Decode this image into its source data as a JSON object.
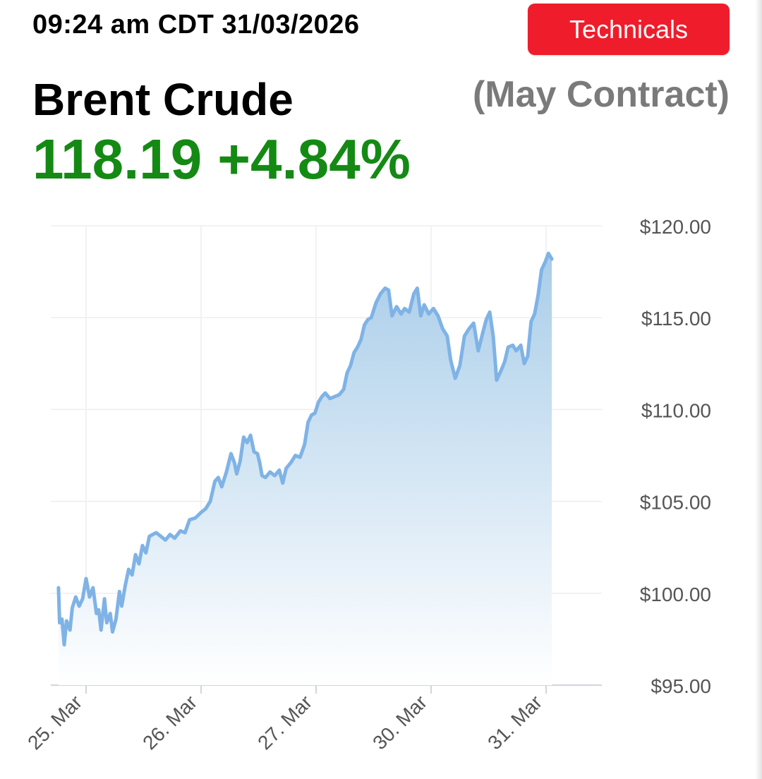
{
  "header": {
    "timestamp": "09:24 am CDT 31/03/2026",
    "technicals_label": "Technicals",
    "instrument_name": "Brent Crude",
    "contract_label": "(May Contract)",
    "price": "118.19",
    "change_pct": "+4.84%"
  },
  "colors": {
    "button": "#ef1d2b",
    "price_up": "#148a14",
    "contract_text": "#7a7a7a",
    "line": "#7fb3e6",
    "area_top": "#a9cde9",
    "area_bottom": "#ffffff",
    "grid": "#eeeeee",
    "axis_text": "#555555"
  },
  "chart_data": {
    "type": "area",
    "xlabel": "",
    "ylabel": "",
    "ylim": [
      95,
      120
    ],
    "y_ticks": [
      {
        "value": 120,
        "label": "$120.00"
      },
      {
        "value": 115,
        "label": "$115.00"
      },
      {
        "value": 110,
        "label": "$110.00"
      },
      {
        "value": 105,
        "label": "$105.00"
      },
      {
        "value": 100,
        "label": "$100.00"
      },
      {
        "value": 95,
        "label": "$95.00"
      }
    ],
    "x_range": [
      -0.2,
      4.35
    ],
    "x_ticks": [
      {
        "value": 0,
        "label": "25. Mar"
      },
      {
        "value": 1,
        "label": "26. Mar"
      },
      {
        "value": 2,
        "label": "27. Mar"
      },
      {
        "value": 3,
        "label": "30. Mar"
      },
      {
        "value": 4,
        "label": "31. Mar"
      }
    ],
    "grid": true,
    "legend": "none",
    "series": [
      {
        "values": [
          [
            -0.24,
            100.3
          ],
          [
            -0.23,
            98.4
          ],
          [
            -0.21,
            98.6
          ],
          [
            -0.19,
            97.2
          ],
          [
            -0.17,
            98.5
          ],
          [
            -0.14,
            98.0
          ],
          [
            -0.12,
            99.2
          ],
          [
            -0.09,
            99.8
          ],
          [
            -0.06,
            99.3
          ],
          [
            -0.03,
            99.7
          ],
          [
            0.0,
            100.8
          ],
          [
            0.03,
            99.8
          ],
          [
            0.06,
            100.3
          ],
          [
            0.09,
            98.9
          ],
          [
            0.11,
            99.1
          ],
          [
            0.13,
            98.0
          ],
          [
            0.16,
            99.7
          ],
          [
            0.18,
            98.4
          ],
          [
            0.21,
            98.9
          ],
          [
            0.23,
            97.9
          ],
          [
            0.26,
            98.6
          ],
          [
            0.29,
            100.1
          ],
          [
            0.31,
            99.3
          ],
          [
            0.34,
            100.4
          ],
          [
            0.37,
            101.3
          ],
          [
            0.4,
            101.0
          ],
          [
            0.43,
            102.1
          ],
          [
            0.46,
            101.6
          ],
          [
            0.49,
            102.6
          ],
          [
            0.52,
            102.2
          ],
          [
            0.55,
            103.1
          ],
          [
            0.58,
            103.2
          ],
          [
            0.61,
            103.3
          ],
          [
            0.65,
            103.1
          ],
          [
            0.69,
            102.9
          ],
          [
            0.73,
            103.2
          ],
          [
            0.77,
            103.0
          ],
          [
            0.82,
            103.4
          ],
          [
            0.86,
            103.3
          ],
          [
            0.9,
            104.0
          ],
          [
            0.95,
            104.1
          ],
          [
            1.0,
            104.4
          ],
          [
            1.04,
            104.6
          ],
          [
            1.08,
            105.0
          ],
          [
            1.12,
            106.1
          ],
          [
            1.15,
            106.3
          ],
          [
            1.18,
            105.8
          ],
          [
            1.22,
            106.6
          ],
          [
            1.26,
            107.6
          ],
          [
            1.29,
            107.1
          ],
          [
            1.31,
            106.5
          ],
          [
            1.34,
            107.2
          ],
          [
            1.37,
            108.5
          ],
          [
            1.4,
            108.2
          ],
          [
            1.43,
            108.6
          ],
          [
            1.46,
            107.7
          ],
          [
            1.49,
            107.6
          ],
          [
            1.51,
            107.1
          ],
          [
            1.53,
            106.4
          ],
          [
            1.56,
            106.3
          ],
          [
            1.6,
            106.6
          ],
          [
            1.64,
            106.4
          ],
          [
            1.68,
            106.7
          ],
          [
            1.71,
            106.0
          ],
          [
            1.74,
            106.8
          ],
          [
            1.78,
            107.1
          ],
          [
            1.82,
            107.5
          ],
          [
            1.86,
            107.4
          ],
          [
            1.9,
            108.1
          ],
          [
            1.93,
            109.3
          ],
          [
            1.96,
            109.7
          ],
          [
            1.99,
            109.8
          ],
          [
            2.02,
            110.4
          ],
          [
            2.05,
            110.7
          ],
          [
            2.08,
            110.9
          ],
          [
            2.12,
            110.6
          ],
          [
            2.16,
            110.7
          ],
          [
            2.2,
            110.8
          ],
          [
            2.24,
            111.1
          ],
          [
            2.27,
            112.0
          ],
          [
            2.3,
            112.4
          ],
          [
            2.33,
            113.1
          ],
          [
            2.36,
            113.4
          ],
          [
            2.39,
            113.8
          ],
          [
            2.42,
            114.6
          ],
          [
            2.45,
            114.9
          ],
          [
            2.48,
            115.0
          ],
          [
            2.52,
            115.8
          ],
          [
            2.56,
            116.3
          ],
          [
            2.6,
            116.6
          ],
          [
            2.63,
            116.5
          ],
          [
            2.66,
            115.1
          ],
          [
            2.7,
            115.6
          ],
          [
            2.74,
            115.2
          ],
          [
            2.77,
            115.5
          ],
          [
            2.81,
            115.3
          ],
          [
            2.85,
            116.3
          ],
          [
            2.88,
            116.6
          ],
          [
            2.91,
            115.1
          ],
          [
            2.94,
            115.7
          ],
          [
            2.98,
            115.2
          ],
          [
            3.02,
            115.5
          ],
          [
            3.06,
            115.1
          ],
          [
            3.1,
            114.4
          ],
          [
            3.14,
            114.0
          ],
          [
            3.17,
            112.7
          ],
          [
            3.21,
            111.7
          ],
          [
            3.25,
            112.4
          ],
          [
            3.29,
            114.0
          ],
          [
            3.33,
            114.4
          ],
          [
            3.37,
            114.7
          ],
          [
            3.41,
            113.2
          ],
          [
            3.45,
            114.2
          ],
          [
            3.48,
            114.9
          ],
          [
            3.51,
            115.3
          ],
          [
            3.54,
            114.0
          ],
          [
            3.57,
            111.6
          ],
          [
            3.6,
            112.0
          ],
          [
            3.64,
            112.6
          ],
          [
            3.67,
            113.4
          ],
          [
            3.71,
            113.5
          ],
          [
            3.74,
            113.2
          ],
          [
            3.78,
            113.5
          ],
          [
            3.81,
            112.5
          ],
          [
            3.84,
            112.9
          ],
          [
            3.87,
            114.8
          ],
          [
            3.9,
            115.2
          ],
          [
            3.93,
            116.2
          ],
          [
            3.96,
            117.6
          ],
          [
            3.99,
            118.0
          ],
          [
            4.02,
            118.5
          ],
          [
            4.05,
            118.19
          ]
        ]
      }
    ]
  }
}
